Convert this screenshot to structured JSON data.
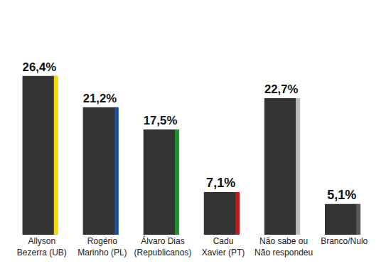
{
  "chart_data": {
    "type": "bar",
    "categories": [
      "Allyson Bezerra (UB)",
      "Rogério Marinho (PL)",
      "Álvaro Dias (Republicanos)",
      "Cadu Xavier (PT)",
      "Não sabe ou Não respondeu",
      "Branco/Nulo"
    ],
    "values": [
      26.4,
      21.2,
      17.5,
      7.1,
      22.7,
      5.1
    ],
    "value_labels": [
      "26,4%",
      "21,2%",
      "17,5%",
      "7,1%",
      "22,7%",
      "5,1%"
    ],
    "colors": [
      "#f2d90c",
      "#1d4f9f",
      "#1f8a2e",
      "#c8161d",
      "#bdbdbd",
      "#5a5a5a"
    ],
    "data_labels": true,
    "tick_labels": "x",
    "grid": false
  }
}
